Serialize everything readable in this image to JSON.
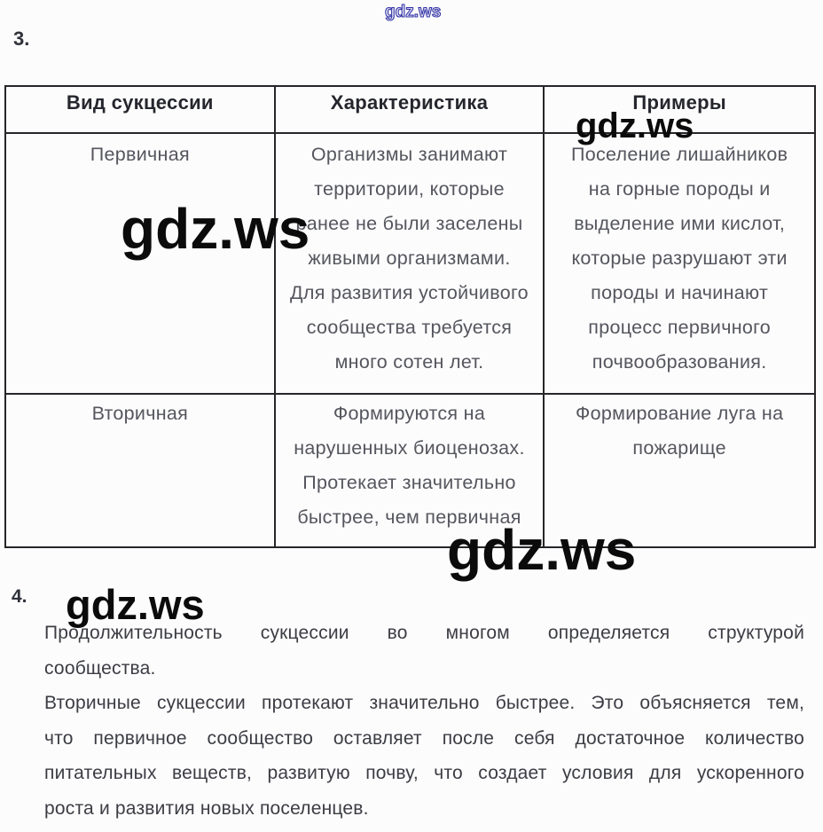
{
  "watermarks": {
    "top": "gdz.ws",
    "row1_big": "gdz.ws",
    "header_examples": "gdz.ws",
    "table_bottom_big": "gdz.ws",
    "section4": "gdz.ws"
  },
  "question3_label": "3.",
  "question4_label": "4.",
  "table": {
    "headers": [
      "Вид сукцессии",
      "Характеристика",
      "Примеры"
    ],
    "rows": [
      {
        "kind": [
          "Первичная"
        ],
        "characteristic": [
          "Организмы занимают",
          "территории, которые",
          "ранее не были заселены",
          "живыми организмами.",
          "Для развития устойчивого",
          "сообщества требуется",
          "много сотен лет."
        ],
        "examples": [
          "Поселение лишайников",
          "на горные породы и",
          "выделение ими кислот,",
          "которые разрушают эти",
          "породы и начинают",
          "процесс первичного",
          "почвообразования."
        ]
      },
      {
        "kind": [
          "Вторичная"
        ],
        "characteristic": [
          "Формируются на",
          "нарушенных биоценозах.",
          "Протекает значительно",
          "быстрее, чем первичная"
        ],
        "examples": [
          "Формирование луга на",
          "пожарище"
        ]
      }
    ]
  },
  "answer4": {
    "paragraphs": [
      [
        "Продолжительность сукцессии во многом определяется структурой",
        "сообщества."
      ],
      [
        "Вторичные сукцессии протекают значительно быстрее. Это объясняется тем,",
        "что первичное сообщество оставляет после себя достаточное количество",
        "питательных веществ, развитую почву, что создает условия для ускоренного",
        "роста и развития новых поселенцев."
      ]
    ]
  }
}
